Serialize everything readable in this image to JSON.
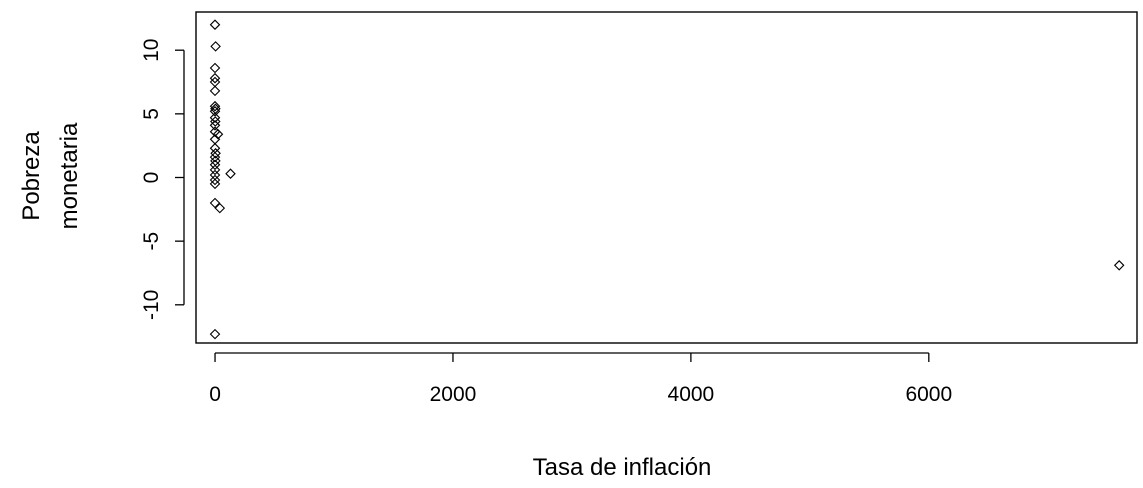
{
  "chart_data": {
    "type": "scatter",
    "title": "",
    "xlabel": "Tasa de inflación",
    "ylabel": [
      "Pobreza",
      "monetaria"
    ],
    "xlim": [
      -160,
      7750
    ],
    "ylim": [
      -13,
      13
    ],
    "x_ticks": [
      0,
      2000,
      4000,
      6000
    ],
    "x_tick_labels": [
      "0",
      "2000",
      "4000",
      "6000"
    ],
    "y_ticks": [
      -10,
      -5,
      0,
      5,
      10
    ],
    "y_tick_labels": [
      "-10",
      "-5",
      "0",
      "5",
      "10"
    ],
    "marker": "open-diamond",
    "grid": false,
    "legend": "none",
    "colors": {
      "marker": "#000000",
      "axes": "#000000",
      "background": "#ffffff"
    },
    "points": [
      {
        "x": 0,
        "y": 12.0
      },
      {
        "x": 5,
        "y": 10.3
      },
      {
        "x": 0,
        "y": 8.6
      },
      {
        "x": 0,
        "y": 7.8
      },
      {
        "x": 0,
        "y": 7.5
      },
      {
        "x": 0,
        "y": 6.8
      },
      {
        "x": 0,
        "y": 5.6
      },
      {
        "x": 3,
        "y": 5.4
      },
      {
        "x": 0,
        "y": 5.2
      },
      {
        "x": 0,
        "y": 4.7
      },
      {
        "x": 2,
        "y": 4.4
      },
      {
        "x": 0,
        "y": 4.1
      },
      {
        "x": 0,
        "y": 3.6
      },
      {
        "x": 25,
        "y": 3.4
      },
      {
        "x": 0,
        "y": 3.0
      },
      {
        "x": 0,
        "y": 2.3
      },
      {
        "x": 5,
        "y": 1.9
      },
      {
        "x": 0,
        "y": 1.6
      },
      {
        "x": 3,
        "y": 1.3
      },
      {
        "x": 0,
        "y": 1.0
      },
      {
        "x": 0,
        "y": 0.6
      },
      {
        "x": 130,
        "y": 0.3
      },
      {
        "x": 0,
        "y": 0.2
      },
      {
        "x": 0,
        "y": -0.2
      },
      {
        "x": 0,
        "y": -0.5
      },
      {
        "x": 0,
        "y": -2.0
      },
      {
        "x": 40,
        "y": -2.4
      },
      {
        "x": 0,
        "y": -12.3
      },
      {
        "x": 7600,
        "y": -6.9
      }
    ]
  }
}
